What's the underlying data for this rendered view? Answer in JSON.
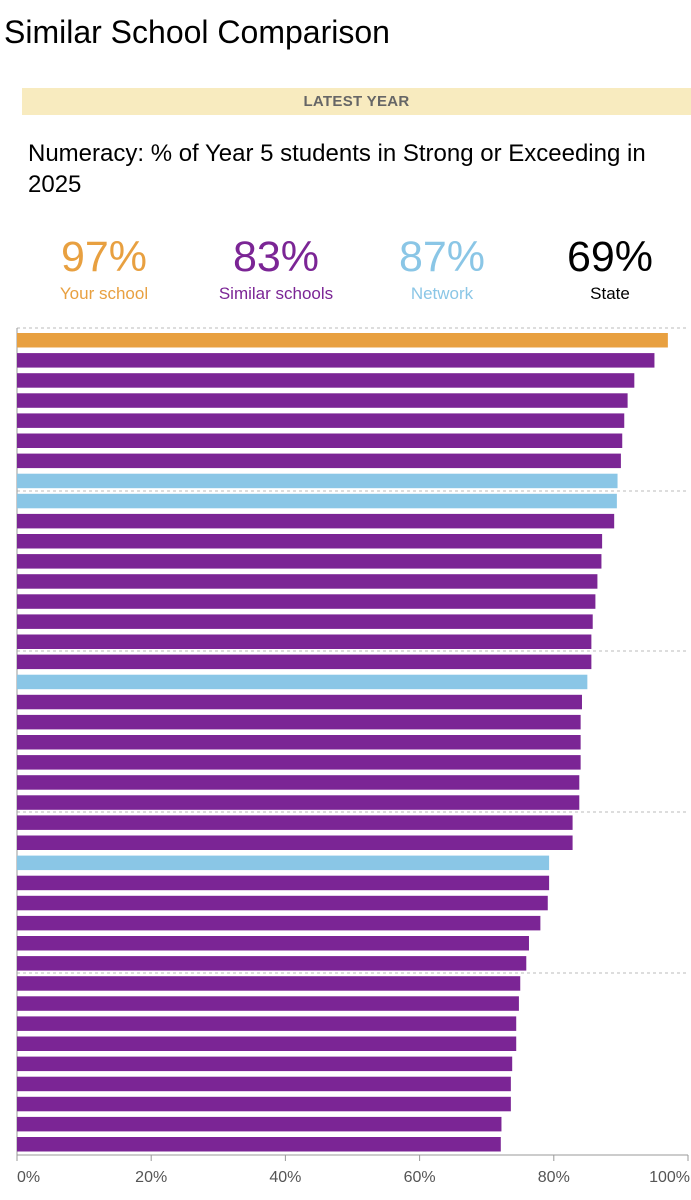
{
  "page": {
    "title": "Similar School Comparison",
    "banner": "LATEST YEAR",
    "subtitle": "Numeracy: % of Year 5 students in Strong or Exceeding in 2025"
  },
  "kpis": [
    {
      "value": "97%",
      "label": "Your school",
      "color": "#e8a040"
    },
    {
      "value": "83%",
      "label": "Similar schools",
      "color": "#7b2595"
    },
    {
      "value": "87%",
      "label": "Network",
      "color": "#8ac6e6"
    },
    {
      "value": "69%",
      "label": "State",
      "color": "#000000"
    }
  ],
  "colors": {
    "your_school": "#e8a040",
    "similar_school": "#7b2595",
    "network": "#8ac6e6"
  },
  "chart_data": {
    "type": "bar",
    "orientation": "horizontal",
    "title": "",
    "xlabel": "",
    "ylabel": "",
    "xlim": [
      0,
      100
    ],
    "x_ticks": [
      "0%",
      "20%",
      "40%",
      "60%",
      "80%",
      "100%"
    ],
    "grid": false,
    "legend": "none",
    "bars": [
      {
        "value": 97,
        "group": "your_school"
      },
      {
        "value": 95,
        "group": "similar_school"
      },
      {
        "value": 92,
        "group": "similar_school"
      },
      {
        "value": 91,
        "group": "similar_school"
      },
      {
        "value": 90.5,
        "group": "similar_school"
      },
      {
        "value": 90.2,
        "group": "similar_school"
      },
      {
        "value": 90,
        "group": "similar_school"
      },
      {
        "value": 89.5,
        "group": "network"
      },
      {
        "value": 89.4,
        "group": "network"
      },
      {
        "value": 89,
        "group": "similar_school"
      },
      {
        "value": 87.2,
        "group": "similar_school"
      },
      {
        "value": 87.1,
        "group": "similar_school"
      },
      {
        "value": 86.5,
        "group": "similar_school"
      },
      {
        "value": 86.2,
        "group": "similar_school"
      },
      {
        "value": 85.8,
        "group": "similar_school"
      },
      {
        "value": 85.6,
        "group": "similar_school"
      },
      {
        "value": 85.6,
        "group": "similar_school"
      },
      {
        "value": 85,
        "group": "network"
      },
      {
        "value": 84.2,
        "group": "similar_school"
      },
      {
        "value": 84,
        "group": "similar_school"
      },
      {
        "value": 84,
        "group": "similar_school"
      },
      {
        "value": 84,
        "group": "similar_school"
      },
      {
        "value": 83.8,
        "group": "similar_school"
      },
      {
        "value": 83.8,
        "group": "similar_school"
      },
      {
        "value": 82.8,
        "group": "similar_school"
      },
      {
        "value": 82.8,
        "group": "similar_school"
      },
      {
        "value": 79.3,
        "group": "network"
      },
      {
        "value": 79.3,
        "group": "similar_school"
      },
      {
        "value": 79.1,
        "group": "similar_school"
      },
      {
        "value": 78,
        "group": "similar_school"
      },
      {
        "value": 76.3,
        "group": "similar_school"
      },
      {
        "value": 75.9,
        "group": "similar_school"
      },
      {
        "value": 75,
        "group": "similar_school"
      },
      {
        "value": 74.8,
        "group": "similar_school"
      },
      {
        "value": 74.4,
        "group": "similar_school"
      },
      {
        "value": 74.4,
        "group": "similar_school"
      },
      {
        "value": 73.8,
        "group": "similar_school"
      },
      {
        "value": 73.6,
        "group": "similar_school"
      },
      {
        "value": 73.6,
        "group": "similar_school"
      },
      {
        "value": 72.2,
        "group": "similar_school"
      },
      {
        "value": 72.1,
        "group": "similar_school"
      }
    ]
  }
}
